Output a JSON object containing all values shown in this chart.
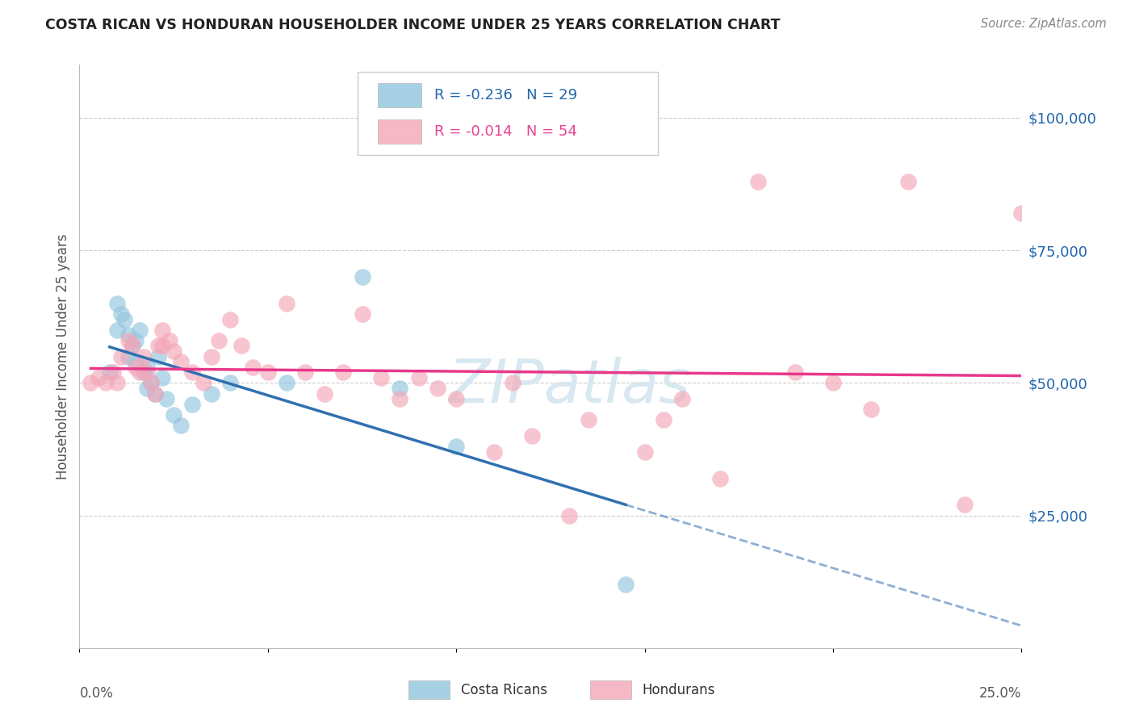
{
  "title": "COSTA RICAN VS HONDURAN HOUSEHOLDER INCOME UNDER 25 YEARS CORRELATION CHART",
  "source": "Source: ZipAtlas.com",
  "ylabel": "Householder Income Under 25 years",
  "xlim": [
    0.0,
    0.25
  ],
  "ylim": [
    0,
    110000
  ],
  "yticks": [
    25000,
    50000,
    75000,
    100000
  ],
  "ytick_labels": [
    "$25,000",
    "$50,000",
    "$75,000",
    "$100,000"
  ],
  "legend_cr_r": "-0.236",
  "legend_cr_n": "29",
  "legend_hon_r": "-0.014",
  "legend_hon_n": "54",
  "legend_label_cr": "Costa Ricans",
  "legend_label_hon": "Hondurans",
  "blue_color": "#92c5de",
  "pink_color": "#f4a6b8",
  "blue_line_color": "#3070b0",
  "pink_line_color": "#e8388a",
  "cr_x": [
    0.008,
    0.01,
    0.01,
    0.011,
    0.012,
    0.013,
    0.013,
    0.014,
    0.015,
    0.015,
    0.016,
    0.017,
    0.018,
    0.018,
    0.019,
    0.02,
    0.021,
    0.022,
    0.023,
    0.025,
    0.027,
    0.03,
    0.035,
    0.04,
    0.055,
    0.075,
    0.085,
    0.1,
    0.145
  ],
  "cr_y": [
    52000,
    60000,
    65000,
    63000,
    62000,
    59000,
    55000,
    57000,
    54000,
    58000,
    60000,
    52000,
    49000,
    53000,
    50000,
    48000,
    55000,
    51000,
    47000,
    44000,
    42000,
    46000,
    48000,
    50000,
    50000,
    70000,
    49000,
    38000,
    12000
  ],
  "hon_x": [
    0.003,
    0.005,
    0.007,
    0.009,
    0.01,
    0.011,
    0.013,
    0.014,
    0.015,
    0.016,
    0.017,
    0.018,
    0.019,
    0.02,
    0.021,
    0.022,
    0.022,
    0.024,
    0.025,
    0.027,
    0.03,
    0.033,
    0.035,
    0.037,
    0.04,
    0.043,
    0.046,
    0.05,
    0.055,
    0.06,
    0.065,
    0.07,
    0.075,
    0.08,
    0.085,
    0.09,
    0.095,
    0.1,
    0.11,
    0.115,
    0.12,
    0.13,
    0.135,
    0.15,
    0.155,
    0.16,
    0.17,
    0.18,
    0.19,
    0.2,
    0.21,
    0.22,
    0.235,
    0.25
  ],
  "hon_y": [
    50000,
    51000,
    50000,
    52000,
    50000,
    55000,
    58000,
    57000,
    53000,
    52000,
    55000,
    52000,
    50000,
    48000,
    57000,
    60000,
    57000,
    58000,
    56000,
    54000,
    52000,
    50000,
    55000,
    58000,
    62000,
    57000,
    53000,
    52000,
    65000,
    52000,
    48000,
    52000,
    63000,
    51000,
    47000,
    51000,
    49000,
    47000,
    37000,
    50000,
    40000,
    25000,
    43000,
    37000,
    43000,
    47000,
    32000,
    88000,
    52000,
    50000,
    45000,
    88000,
    27000,
    82000
  ]
}
